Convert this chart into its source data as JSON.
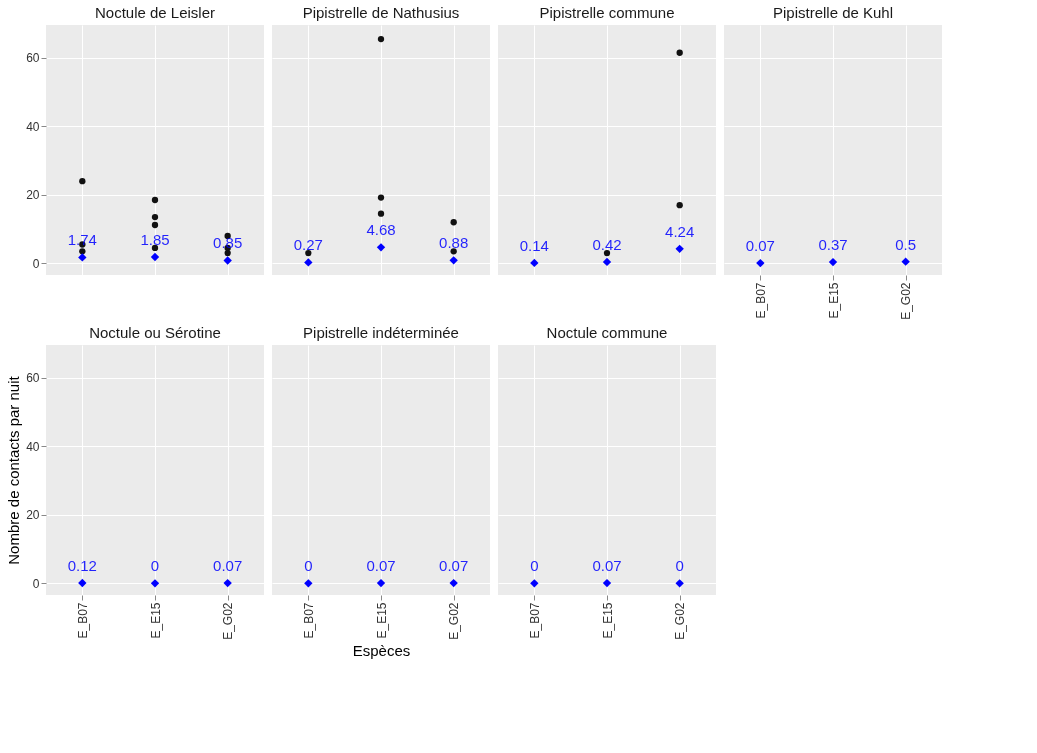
{
  "chart_data": [
    {
      "type": "scatter",
      "title": "Noctule de Leisler",
      "categories": [
        "E_B07",
        "E_E15",
        "E_G02"
      ],
      "ylim": [
        -3.4,
        69.6
      ],
      "yticks": [
        0,
        20,
        40,
        60
      ],
      "grid": true,
      "tick_labels": "y",
      "series": [
        {
          "color": "#111111",
          "marker": "circle",
          "x": [
            "E_B07",
            "E_B07",
            "E_B07",
            "E_E15",
            "E_E15",
            "E_E15",
            "E_E15",
            "E_E15",
            "E_G02",
            "E_G02",
            "E_G02"
          ],
          "values": [
            24,
            5.5,
            3.5,
            18.5,
            13.5,
            11.2,
            null,
            4.5,
            8,
            4.5,
            3
          ]
        },
        {
          "color": "#0000ff",
          "marker": "diamond",
          "x": [
            "E_B07",
            "E_E15",
            "E_G02"
          ],
          "values": [
            1.74,
            1.85,
            0.85
          ],
          "value_labels": [
            "1.74",
            "1.85",
            "0.85"
          ]
        }
      ]
    },
    {
      "type": "scatter",
      "title": "Pipistrelle de Nathusius",
      "categories": [
        "E_B07",
        "E_E15",
        "E_G02"
      ],
      "ylim": [
        -3.4,
        69.6
      ],
      "yticks": [
        0,
        20,
        40,
        60
      ],
      "grid": true,
      "tick_labels": false,
      "series": [
        {
          "color": "#111111",
          "marker": "circle",
          "x": [
            "E_B07",
            "E_E15",
            "E_E15",
            "E_E15",
            "E_G02",
            "E_G02"
          ],
          "values": [
            3,
            65.5,
            19.2,
            14.5,
            12,
            3.5
          ]
        },
        {
          "color": "#0000ff",
          "marker": "diamond",
          "x": [
            "E_B07",
            "E_E15",
            "E_G02"
          ],
          "values": [
            0.27,
            4.68,
            0.88
          ],
          "value_labels": [
            "0.27",
            "4.68",
            "0.88"
          ]
        }
      ]
    },
    {
      "type": "scatter",
      "title": "Pipistrelle commune",
      "categories": [
        "E_B07",
        "E_E15",
        "E_G02"
      ],
      "ylim": [
        -3.4,
        69.6
      ],
      "yticks": [
        0,
        20,
        40,
        60
      ],
      "grid": true,
      "tick_labels": false,
      "series": [
        {
          "color": "#111111",
          "marker": "circle",
          "x": [
            "E_E15",
            "E_G02",
            "E_G02"
          ],
          "values": [
            3,
            61.5,
            17
          ]
        },
        {
          "color": "#0000ff",
          "marker": "diamond",
          "x": [
            "E_B07",
            "E_E15",
            "E_G02"
          ],
          "values": [
            0.14,
            0.42,
            4.24
          ],
          "value_labels": [
            "0.14",
            "0.42",
            "4.24"
          ]
        }
      ]
    },
    {
      "type": "scatter",
      "title": "Pipistrelle de Kuhl",
      "categories": [
        "E_B07",
        "E_E15",
        "E_G02"
      ],
      "ylim": [
        -3.4,
        69.6
      ],
      "yticks": [
        0,
        20,
        40,
        60
      ],
      "grid": true,
      "tick_labels": "x",
      "series": [
        {
          "color": "#0000ff",
          "marker": "diamond",
          "x": [
            "E_B07",
            "E_E15",
            "E_G02"
          ],
          "values": [
            0.07,
            0.37,
            0.5
          ],
          "value_labels": [
            "0.07",
            "0.37",
            "0.5"
          ]
        }
      ]
    },
    {
      "type": "scatter",
      "title": "Noctule ou Sérotine",
      "ylabel": "Nombre de contacts par nuit",
      "categories": [
        "E_B07",
        "E_E15",
        "E_G02"
      ],
      "ylim": [
        -3.4,
        69.6
      ],
      "yticks": [
        0,
        20,
        40,
        60
      ],
      "grid": true,
      "series": [
        {
          "color": "#0000ff",
          "marker": "diamond",
          "x": [
            "E_B07",
            "E_E15",
            "E_G02"
          ],
          "values": [
            0.12,
            0,
            0.07
          ],
          "value_labels": [
            "0.12",
            "0",
            "0.07"
          ]
        }
      ]
    },
    {
      "type": "scatter",
      "title": "Pipistrelle indéterminée",
      "xlabel": "Espèces",
      "categories": [
        "E_B07",
        "E_E15",
        "E_G02"
      ],
      "ylim": [
        -3.4,
        69.6
      ],
      "yticks": [
        0,
        20,
        40,
        60
      ],
      "grid": true,
      "tick_labels": "x",
      "series": [
        {
          "color": "#0000ff",
          "marker": "diamond",
          "x": [
            "E_B07",
            "E_E15",
            "E_G02"
          ],
          "values": [
            0,
            0.07,
            0.07
          ],
          "value_labels": [
            "0",
            "0.07",
            "0.07"
          ]
        }
      ]
    },
    {
      "type": "scatter",
      "title": "Noctule commune",
      "categories": [
        "E_B07",
        "E_E15",
        "E_G02"
      ],
      "ylim": [
        -3.4,
        69.6
      ],
      "yticks": [
        0,
        20,
        40,
        60
      ],
      "grid": true,
      "tick_labels": "x",
      "series": [
        {
          "color": "#0000ff",
          "marker": "diamond",
          "x": [
            "E_B07",
            "E_E15",
            "E_G02"
          ],
          "values": [
            0,
            0.07,
            0
          ],
          "value_labels": [
            "0",
            "0.07",
            "0"
          ]
        }
      ]
    }
  ]
}
